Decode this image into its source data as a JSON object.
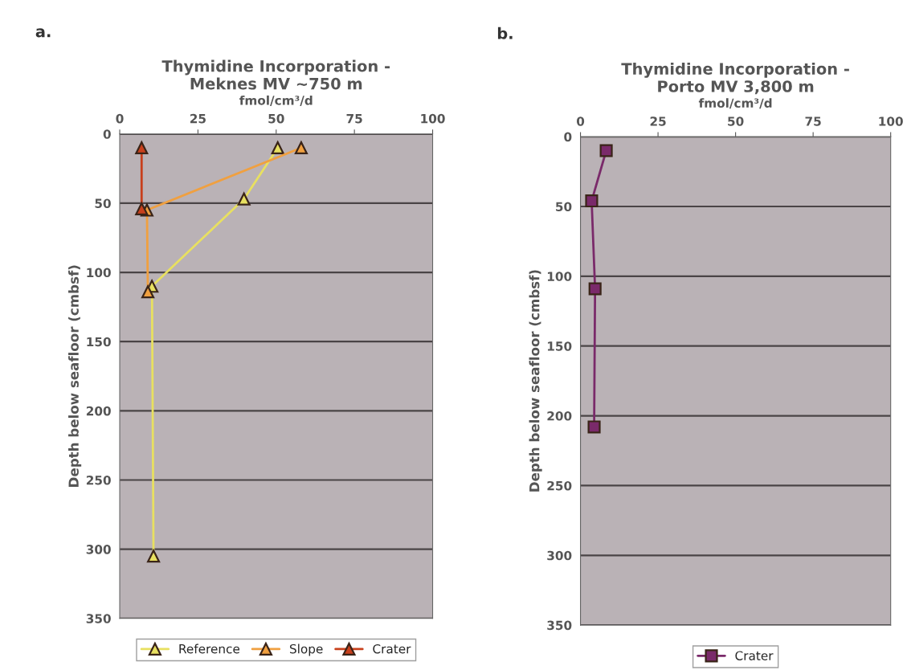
{
  "chart_data": [
    {
      "type": "line",
      "title": "Thymidine Incorporation -\nMeknes MV ~750 m",
      "xlabel": "fmol/cm³/d",
      "ylabel": "Depth below seafloor (cmbsf)",
      "annotations": [
        "a."
      ],
      "xlim": [
        0,
        100
      ],
      "xticks": [
        0,
        25,
        50,
        75,
        100
      ],
      "ylim": [
        350,
        0
      ],
      "yticks": [
        0,
        50,
        100,
        150,
        200,
        250,
        300,
        350
      ],
      "grid": "y",
      "legend": "bottom",
      "marker": "triangle",
      "series": [
        {
          "name": "Reference",
          "color": "#e8e060",
          "x": [
            50.5,
            39.7,
            10.3,
            10.8
          ],
          "values": [
            10,
            47,
            110,
            305
          ]
        },
        {
          "name": "Slope",
          "color": "#f0a040",
          "x": [
            58,
            8.7,
            9
          ],
          "values": [
            10,
            55,
            114
          ]
        },
        {
          "name": "Crater",
          "color": "#c8401c",
          "x": [
            7,
            7
          ],
          "values": [
            10,
            54
          ]
        }
      ]
    },
    {
      "type": "line",
      "title": "Thymidine Incorporation -\nPorto MV 3,800 m",
      "xlabel": "fmol/cm³/d",
      "ylabel": "Depth below seafloor (cmbsf)",
      "annotations": [
        "b."
      ],
      "xlim": [
        0,
        100
      ],
      "xticks": [
        0,
        25,
        50,
        75,
        100
      ],
      "ylim": [
        350,
        0
      ],
      "yticks": [
        0,
        50,
        100,
        150,
        200,
        250,
        300,
        350
      ],
      "grid": "y",
      "legend": "bottom",
      "marker": "square",
      "series": [
        {
          "name": "Crater",
          "color": "#7a2a6a",
          "x": [
            8.3,
            3.6,
            4.7,
            4.4
          ],
          "values": [
            10,
            46,
            109,
            208
          ]
        }
      ]
    }
  ]
}
